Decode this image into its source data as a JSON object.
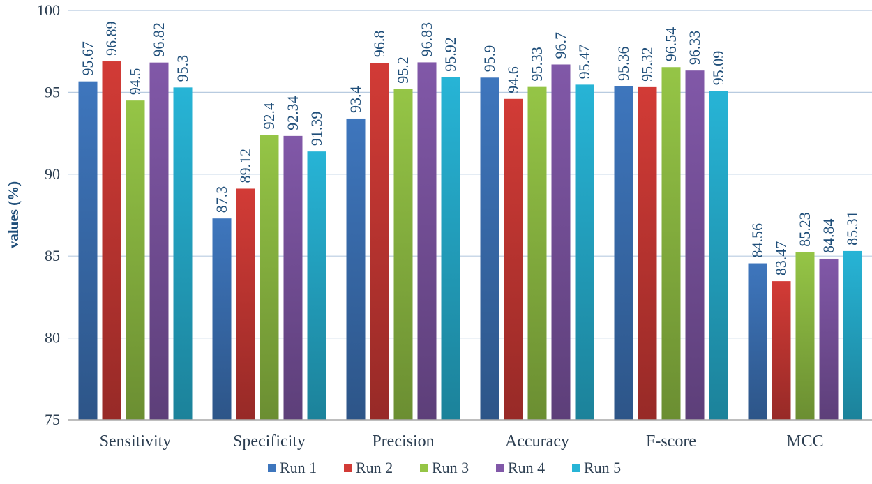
{
  "chart_data": {
    "type": "bar",
    "title": "",
    "xlabel": "",
    "ylabel": "values (%)",
    "ylim": [
      75,
      100
    ],
    "yticks": [
      75,
      80,
      85,
      90,
      95,
      100
    ],
    "grid": true,
    "legend_position": "bottom",
    "categories": [
      "Sensitivity",
      "Specificity",
      "Precision",
      "Accuracy",
      "F-score",
      "MCC"
    ],
    "series": [
      {
        "name": "Run 1",
        "color": "#3e76bd",
        "values": [
          95.67,
          87.3,
          93.4,
          95.9,
          95.36,
          84.56
        ],
        "labels": [
          "95.67",
          "87.3",
          "93.4",
          "95.9",
          "95.36",
          "84.56"
        ]
      },
      {
        "name": "Run 2",
        "color": "#d23b36",
        "values": [
          96.89,
          89.12,
          96.8,
          94.6,
          95.32,
          83.47
        ],
        "labels": [
          "96.89",
          "89.12",
          "96.8",
          "94.6",
          "95.32",
          "83.47"
        ]
      },
      {
        "name": "Run 3",
        "color": "#95c546",
        "values": [
          94.5,
          92.4,
          95.2,
          95.33,
          96.54,
          85.23
        ],
        "labels": [
          "94.5",
          "92.4",
          "95.2",
          "95.33",
          "96.54",
          "85.23"
        ]
      },
      {
        "name": "Run 4",
        "color": "#8158a8",
        "values": [
          96.82,
          92.34,
          96.83,
          96.7,
          96.33,
          84.84
        ],
        "labels": [
          "96.82",
          "92.34",
          "96.83",
          "96.7",
          "96.33",
          "84.84"
        ]
      },
      {
        "name": "Run 5",
        "color": "#27b4d6",
        "values": [
          95.3,
          91.39,
          95.92,
          95.47,
          95.09,
          85.31
        ],
        "labels": [
          "95.3",
          "91.39",
          "95.92",
          "95.47",
          "95.09",
          "85.31"
        ]
      }
    ]
  }
}
